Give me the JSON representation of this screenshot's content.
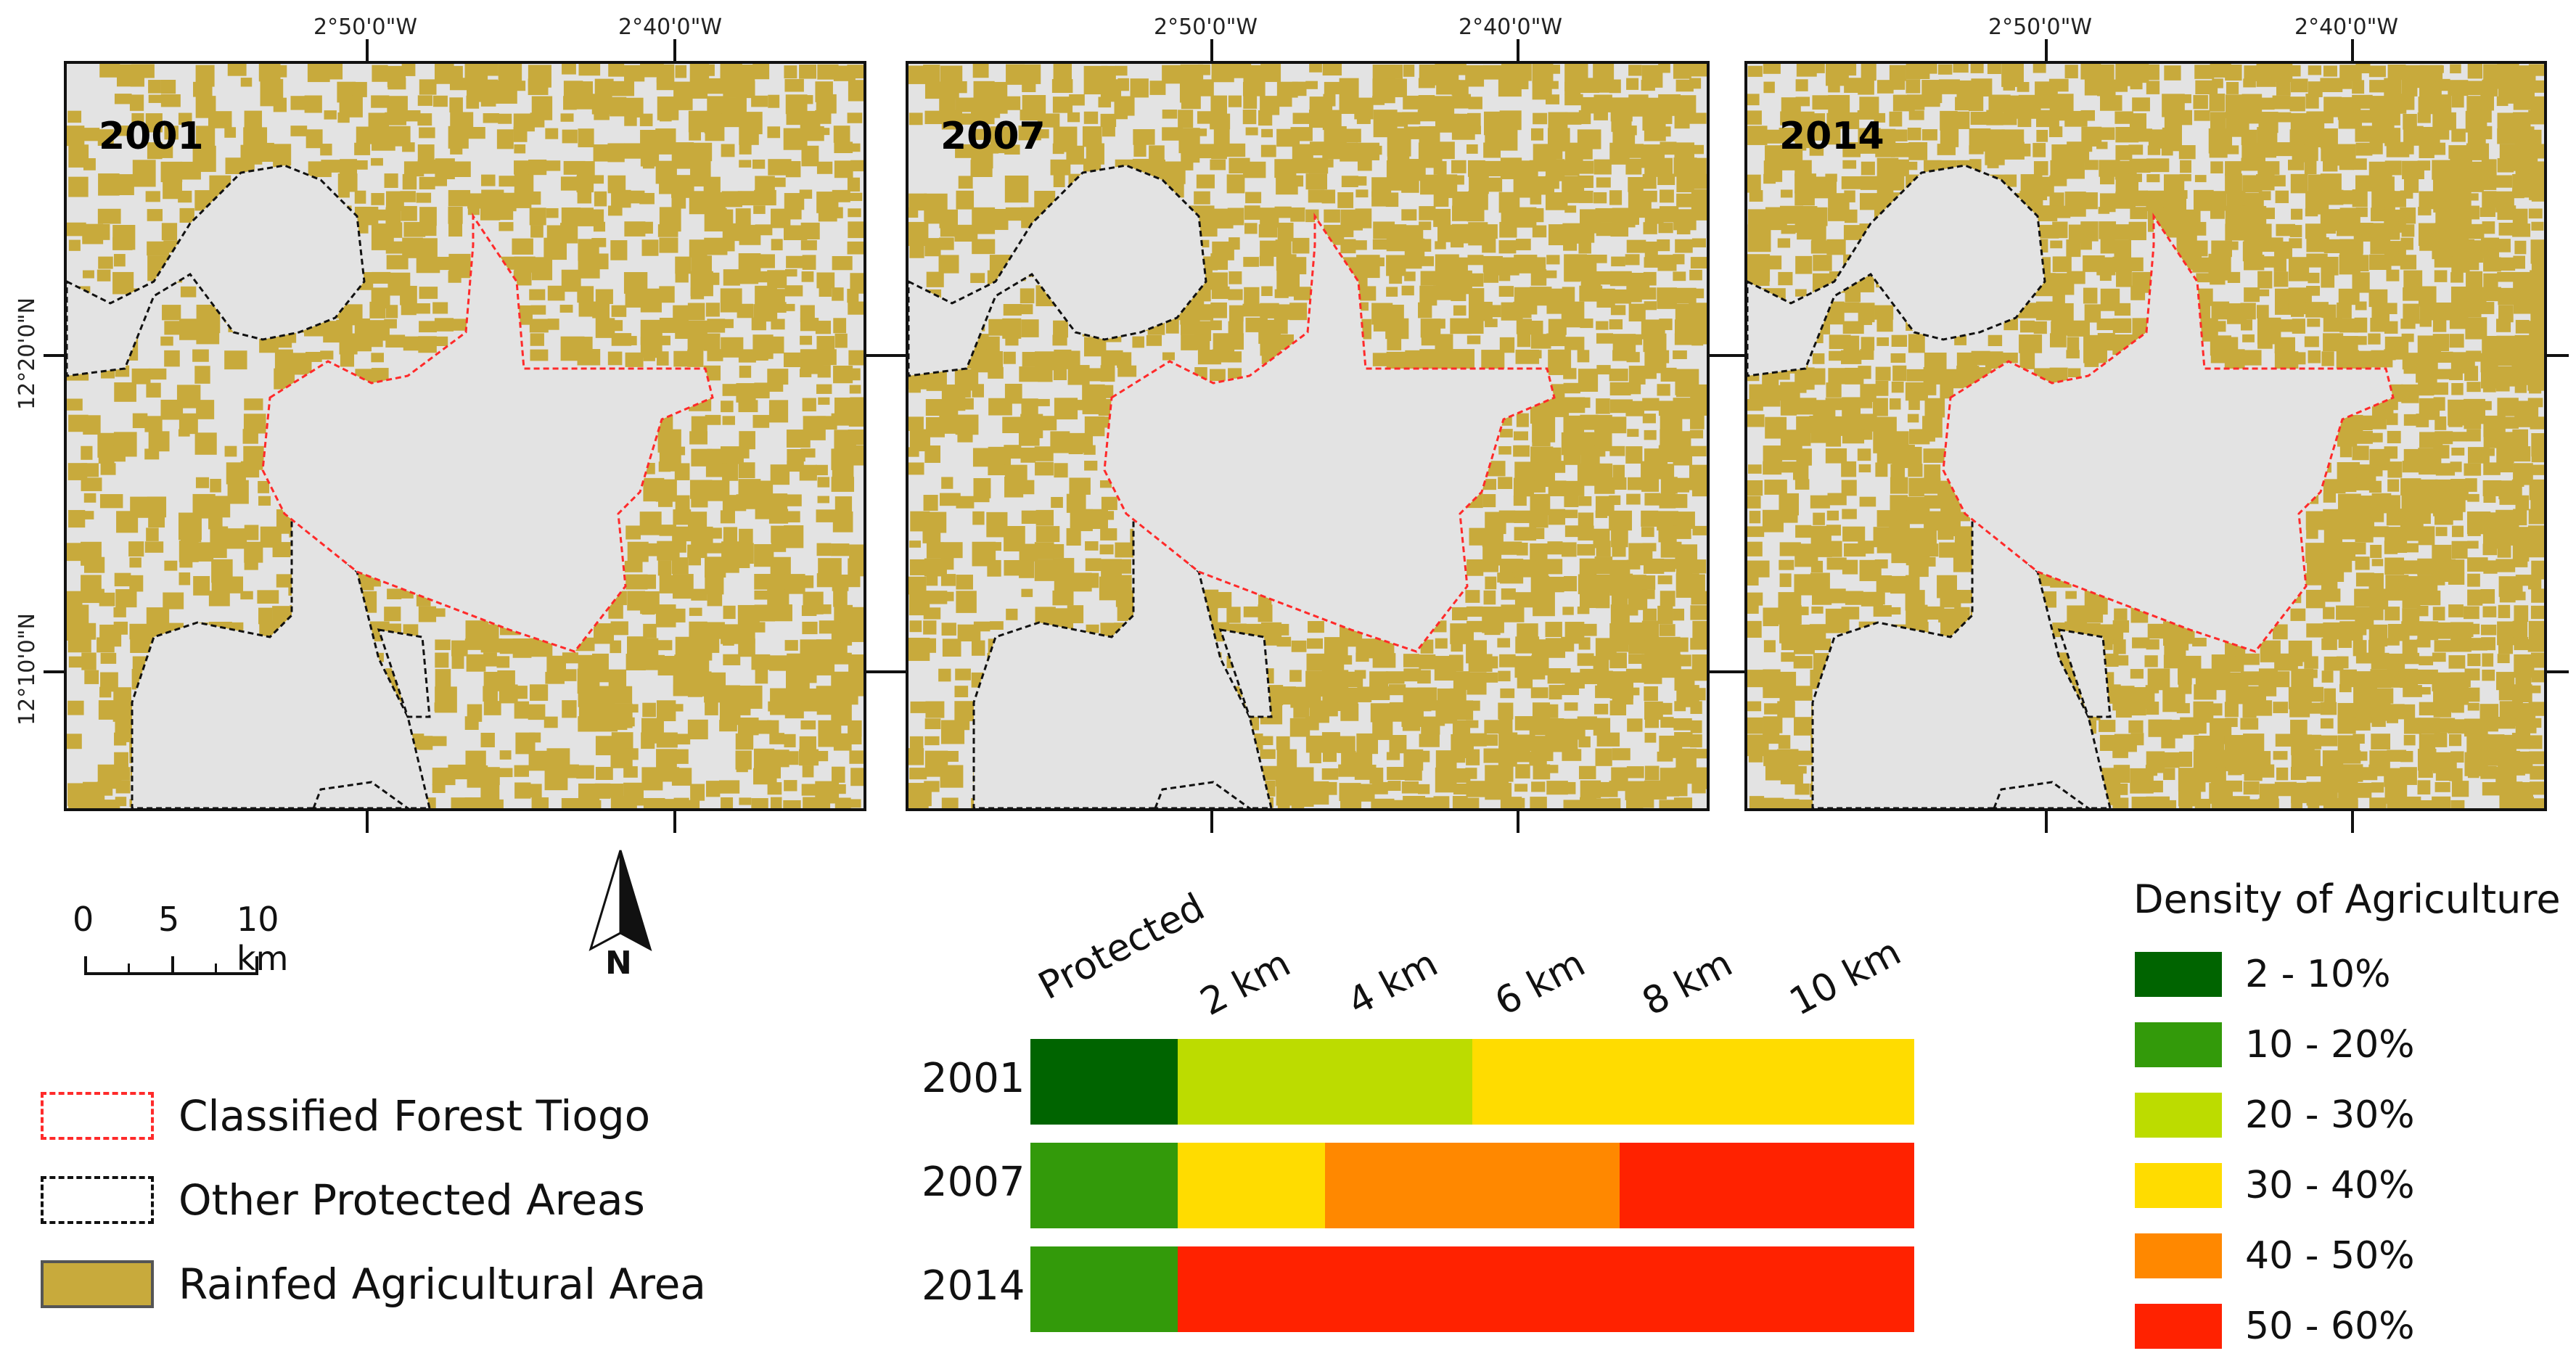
{
  "panels": [
    {
      "year": "2001",
      "density": 0.55
    },
    {
      "year": "2007",
      "density": 0.72
    },
    {
      "year": "2014",
      "density": 0.86
    }
  ],
  "coords": {
    "lon1": "2°50'0\"W",
    "lon2": "2°40'0\"W",
    "lat1": "12°20'0\"N",
    "lat2": "12°10'0\"N"
  },
  "scalebar": {
    "t0": "0",
    "t5": "5",
    "t10": "10 km"
  },
  "north_label": "N",
  "legend": {
    "classified": "Classified Forest Tiogo",
    "other": "Other Protected Areas",
    "rainfed": "Rainfed Agricultural Area"
  },
  "colors": {
    "agri": "#c8aa3c",
    "background": "#e3e3e3",
    "classified_boundary": "#ff2a2a",
    "other_boundary": "#111111"
  },
  "density_legend": {
    "title": "Density of Agriculture",
    "items": [
      {
        "label": "2 - 10%",
        "color": "#006400"
      },
      {
        "label": "10 - 20%",
        "color": "#339a0a"
      },
      {
        "label": "20 - 30%",
        "color": "#bcdc00"
      },
      {
        "label": "30 - 40%",
        "color": "#ffdc00"
      },
      {
        "label": "40 - 50%",
        "color": "#ff8800"
      },
      {
        "label": "50 - 60%",
        "color": "#ff2200"
      }
    ]
  },
  "band_table": {
    "columns": [
      "Protected",
      "2 km",
      "4 km",
      "6 km",
      "8 km",
      "10 km"
    ],
    "rows": [
      {
        "year": "2001",
        "classes": [
          0,
          2,
          2,
          3,
          3,
          3
        ]
      },
      {
        "year": "2007",
        "classes": [
          1,
          3,
          4,
          4,
          5,
          5
        ]
      },
      {
        "year": "2014",
        "classes": [
          1,
          5,
          5,
          5,
          5,
          5
        ]
      }
    ]
  }
}
